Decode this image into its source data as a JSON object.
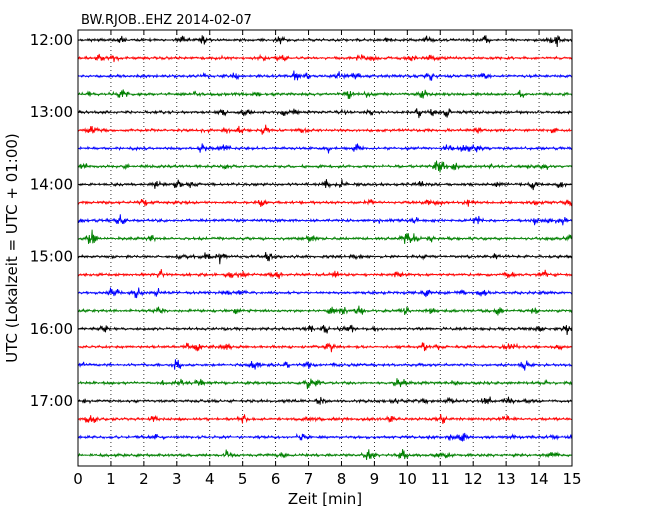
{
  "chart_data": {
    "type": "line",
    "title": "BW.RJOB..EHZ 2014-02-07",
    "xlabel": "Zeit  [min]",
    "ylabel": "UTC (Lokalzeit = UTC + 01:00)",
    "xlim": [
      0,
      15
    ],
    "x_ticks": [
      0,
      1,
      2,
      3,
      4,
      5,
      6,
      7,
      8,
      9,
      10,
      11,
      12,
      13,
      14,
      15
    ],
    "x_tick_labels": [
      "0",
      "1",
      "2",
      "3",
      "4",
      "5",
      "6",
      "7",
      "8",
      "9",
      "10",
      "11",
      "12",
      "13",
      "14",
      "15"
    ],
    "y_tick_labels": [
      {
        "label": "12:00",
        "trace_index": 0
      },
      {
        "label": "13:00",
        "trace_index": 4
      },
      {
        "label": "14:00",
        "trace_index": 8
      },
      {
        "label": "15:00",
        "trace_index": 12
      },
      {
        "label": "16:00",
        "trace_index": 16
      },
      {
        "label": "17:00",
        "trace_index": 20
      }
    ],
    "grid": "vertical dotted at each minute",
    "trace_minutes": 15,
    "trace_colors": [
      "#000000",
      "#ff0000",
      "#0000ff",
      "#008000"
    ],
    "traces": [
      {
        "start": "12:00"
      },
      {
        "start": "12:15"
      },
      {
        "start": "12:30"
      },
      {
        "start": "12:45"
      },
      {
        "start": "13:00"
      },
      {
        "start": "13:15"
      },
      {
        "start": "13:30"
      },
      {
        "start": "13:45"
      },
      {
        "start": "14:00"
      },
      {
        "start": "14:15"
      },
      {
        "start": "14:30"
      },
      {
        "start": "14:45"
      },
      {
        "start": "15:00"
      },
      {
        "start": "15:15"
      },
      {
        "start": "15:30"
      },
      {
        "start": "15:45"
      },
      {
        "start": "16:00"
      },
      {
        "start": "16:15"
      },
      {
        "start": "16:30"
      },
      {
        "start": "16:45"
      },
      {
        "start": "17:00"
      },
      {
        "start": "17:15"
      },
      {
        "start": "17:30"
      },
      {
        "start": "17:45"
      }
    ]
  }
}
